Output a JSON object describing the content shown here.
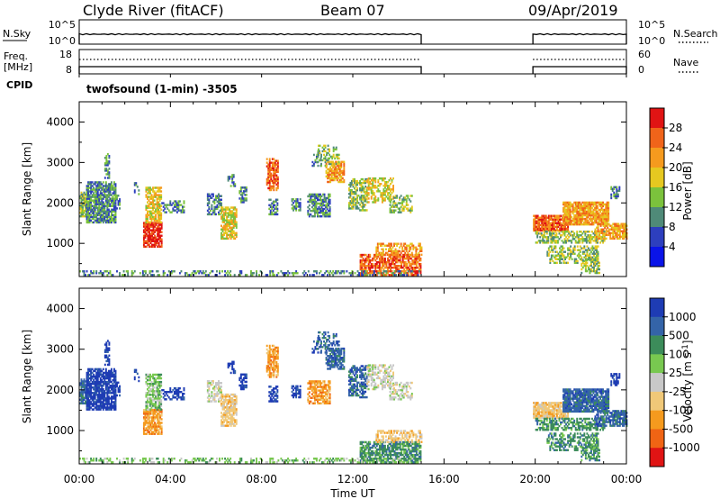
{
  "header": {
    "station": "Clyde River (fitACF)",
    "beam": "Beam 07",
    "date": "09/Apr/2019"
  },
  "nsky": {
    "label": "N.Sky",
    "ticks_left": [
      "10^5",
      "10^0"
    ],
    "ticks_right": [
      "10^5",
      "10^0"
    ],
    "legend": "N.Search",
    "segments": [
      {
        "start": 0.0,
        "end": 15.0
      },
      {
        "start": 19.9,
        "end": 24.0
      }
    ]
  },
  "freq": {
    "label_line1": "Freq.",
    "label_line2": "[MHz]",
    "ticks_left": [
      "18",
      "8"
    ],
    "ticks_right": [
      "60",
      "0"
    ],
    "legend": "Nave",
    "cpid_label": "CPID",
    "program": "twofsound (1-min) -3505"
  },
  "time_axis": {
    "label": "Time UT",
    "ticks": [
      "00:00",
      "04:00",
      "08:00",
      "12:00",
      "16:00",
      "20:00",
      "00:00"
    ],
    "range": [
      0,
      24
    ]
  },
  "chart_data": [
    {
      "type": "heatmap",
      "title": "",
      "xlabel": "Time UT",
      "ylabel": "Slant Range [km]",
      "yticks": [
        1000,
        2000,
        3000,
        4000
      ],
      "ylim": [
        180,
        4500
      ],
      "xlim": [
        0,
        24
      ],
      "colorbar": {
        "label": "Power [dB]",
        "ticks": [
          "4",
          "8",
          "12",
          "16",
          "20",
          "24",
          "28"
        ],
        "colors": [
          "#0a14e8",
          "#2d3fbe",
          "#4f8a78",
          "#7bc23c",
          "#e6c820",
          "#f59a1e",
          "#f0641a",
          "#e01414"
        ]
      }
    },
    {
      "type": "heatmap",
      "title": "",
      "xlabel": "Time UT",
      "ylabel": "Slant Range [km]",
      "yticks": [
        1000,
        2000,
        3000,
        4000
      ],
      "ylim": [
        180,
        4500
      ],
      "xlim": [
        0,
        24
      ],
      "colorbar": {
        "label": "Velocity [m s^-1]",
        "ticks": [
          "1000",
          "500",
          "100",
          "25",
          "-25",
          "-100",
          "-500",
          "-1000"
        ],
        "colors": [
          "#1e3cb4",
          "#3464a8",
          "#3c8c5a",
          "#78c850",
          "#c8c8c8",
          "#f0c878",
          "#f59a1e",
          "#f06414",
          "#e01414"
        ]
      }
    }
  ]
}
